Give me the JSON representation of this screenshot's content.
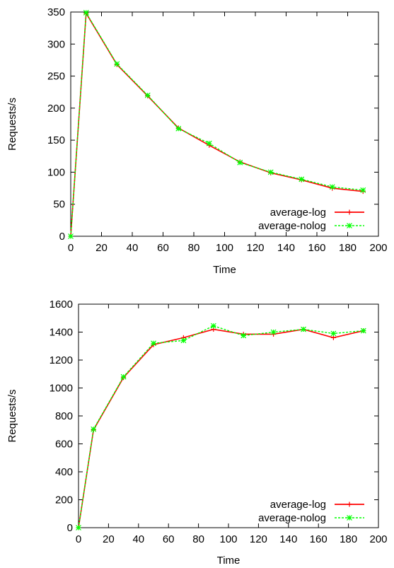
{
  "chart_data": [
    {
      "type": "line",
      "xlabel": "Time",
      "ylabel": "Requests/s",
      "xlim": [
        0,
        200
      ],
      "ylim": [
        0,
        350
      ],
      "xticks": [
        0,
        20,
        40,
        60,
        80,
        100,
        120,
        140,
        160,
        180,
        200
      ],
      "yticks": [
        0,
        50,
        100,
        150,
        200,
        250,
        300,
        350
      ],
      "grid": false,
      "legend_position": "bottom-right",
      "x": [
        0,
        10,
        30,
        50,
        70,
        90,
        110,
        130,
        150,
        170,
        190
      ],
      "series": [
        {
          "name": "average-log",
          "color": "#ff0000",
          "marker": "plus",
          "values": [
            0,
            348,
            268,
            219,
            169,
            142,
            116,
            99,
            88,
            75,
            70
          ]
        },
        {
          "name": "average-nolog",
          "color": "#00ff00",
          "marker": "cross",
          "dashed": true,
          "values": [
            0,
            349,
            269,
            220,
            168,
            145,
            115,
            100,
            89,
            77,
            72
          ]
        }
      ]
    },
    {
      "type": "line",
      "xlabel": "Time",
      "ylabel": "Requests/s",
      "xlim": [
        0,
        200
      ],
      "ylim": [
        0,
        1600
      ],
      "xticks": [
        0,
        20,
        40,
        60,
        80,
        100,
        120,
        140,
        160,
        180,
        200
      ],
      "yticks": [
        0,
        200,
        400,
        600,
        800,
        1000,
        1200,
        1400,
        1600
      ],
      "grid": false,
      "legend_position": "bottom-right",
      "x": [
        0,
        10,
        30,
        50,
        70,
        90,
        110,
        130,
        150,
        170,
        190
      ],
      "series": [
        {
          "name": "average-log",
          "color": "#ff0000",
          "marker": "plus",
          "values": [
            0,
            700,
            1075,
            1310,
            1360,
            1420,
            1385,
            1385,
            1420,
            1360,
            1410
          ]
        },
        {
          "name": "average-nolog",
          "color": "#00ff00",
          "marker": "cross",
          "dashed": true,
          "values": [
            0,
            705,
            1080,
            1320,
            1340,
            1445,
            1375,
            1400,
            1420,
            1390,
            1410
          ]
        }
      ]
    }
  ]
}
